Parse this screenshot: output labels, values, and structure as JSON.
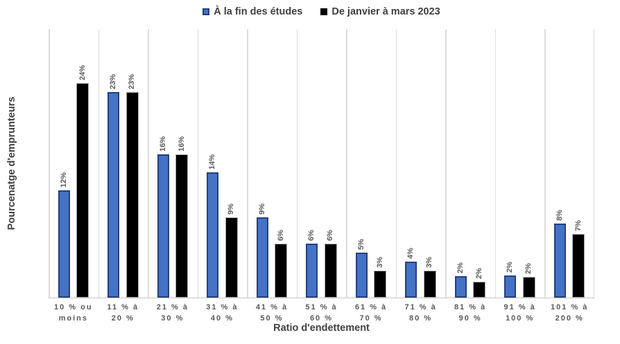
{
  "legend": {
    "items": [
      {
        "label": "À la fin des études",
        "fill": "#4472C4",
        "border": "#24407D"
      },
      {
        "label": "De janvier à mars 2023",
        "fill": "#000000",
        "border": "#000000"
      }
    ]
  },
  "chart_data": {
    "type": "bar",
    "title": "",
    "xlabel": "Ratio d'endettement",
    "ylabel": "Pourcenatge d'emprunteurs",
    "categories": [
      "10 % ou\nmoins",
      "11 % à\n20 %",
      "21 % à\n30 %",
      "31 % à\n40 %",
      "41 % à\n50 %",
      "51 % à\n60 %",
      "61 % à\n70 %",
      "71 % à\n80 %",
      "81 % à\n90 %",
      "91 % à\n100 %",
      "101 % à\n200 %"
    ],
    "series": [
      {
        "name": "À la fin des études",
        "color": "#4472C4",
        "border_color": "#24407D",
        "values": [
          12,
          23,
          16,
          14,
          9,
          6,
          5,
          4,
          2,
          2,
          8
        ],
        "labels": [
          "12%",
          "23%",
          "16%",
          "14%",
          "9%",
          "6%",
          "5%",
          "4%",
          "2%",
          "2%",
          "8%"
        ],
        "values_precise": [
          12,
          23,
          16,
          14,
          9,
          6,
          5,
          4,
          2.4,
          2.5,
          8.3
        ]
      },
      {
        "name": "De janvier à mars 2023",
        "color": "#000000",
        "border_color": "#ABABAB",
        "values": [
          24,
          23,
          16,
          9,
          6,
          6,
          3,
          3,
          2,
          2,
          7
        ],
        "labels": [
          "24%",
          "23%",
          "16%",
          "9%",
          "6%",
          "6%",
          "3%",
          "3%",
          "2%",
          "2%",
          "7%"
        ],
        "values_precise": [
          24,
          23,
          16,
          9,
          6,
          6,
          3,
          3,
          1.8,
          2.3,
          7.1
        ]
      }
    ],
    "ylim": [
      0,
      30
    ],
    "y_axis_tick_labels_visible": false,
    "gridlines": "vertical-category-separators",
    "legend_position": "top-center",
    "data_label_rotation_deg": -90
  },
  "colors": {
    "background": "#FFFFFF",
    "gridline": "#DCDCDC",
    "axis_line": "#C6C6C6",
    "data_label": "#595959",
    "tick_label": "#595959",
    "axis_title": "#404040",
    "legend_text": "#404040"
  }
}
